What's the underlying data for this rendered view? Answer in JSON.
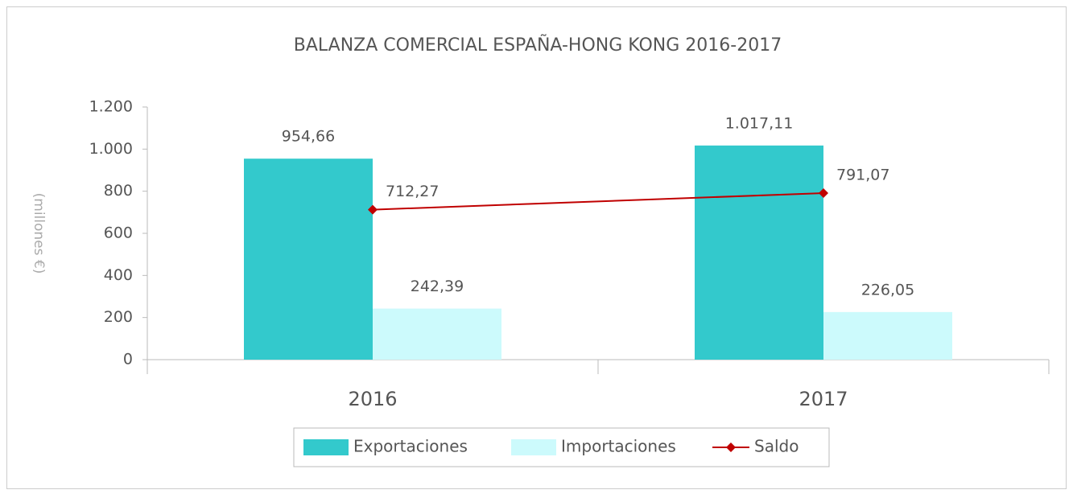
{
  "chart_data": {
    "type": "bar",
    "title": "BALANZA COMERCIAL ESPAÑA-HONG KONG 2016-2017",
    "ylabel": "(millones €)",
    "categories": [
      "2016",
      "2017"
    ],
    "series": [
      {
        "name": "Exportaciones",
        "color": "#33c9cc",
        "values": [
          954.66,
          1017.11
        ],
        "value_labels": [
          "954,66",
          "1.017,11"
        ]
      },
      {
        "name": "Importaciones",
        "color": "#ccfafc",
        "values": [
          242.39,
          226.05
        ],
        "value_labels": [
          "242,39",
          "226,05"
        ]
      },
      {
        "name": "Saldo",
        "type": "line",
        "color": "#c00000",
        "values": [
          712.27,
          791.07
        ],
        "value_labels": [
          "712,27",
          "791,07"
        ]
      }
    ],
    "ylim": [
      0,
      1200
    ],
    "yticks": [
      0,
      200,
      400,
      600,
      800,
      {
        "value": 1000,
        "label": "1.000"
      },
      {
        "value": 1200,
        "label": "1.200"
      }
    ],
    "grid": false,
    "legend": "bottom"
  }
}
